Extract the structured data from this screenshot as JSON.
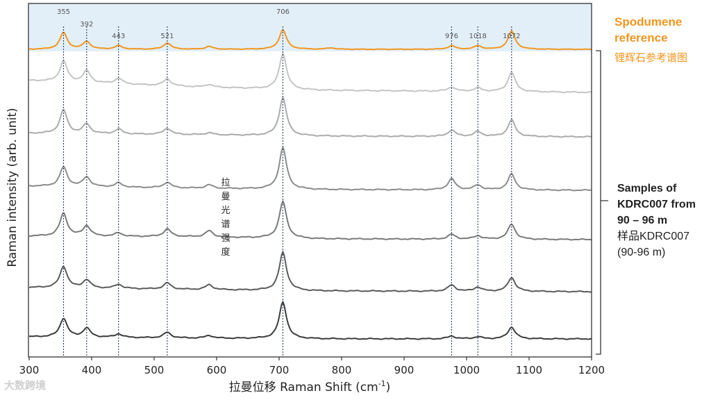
{
  "chart_data": {
    "type": "line",
    "xlabel_cn": "拉曼位移",
    "xlabel": "Raman Shift (cm",
    "xlabel_sup": "-1",
    "xlabel_close": ")",
    "ylabel": "Raman intensity (arb. unit)",
    "ylabel_cn": "拉曼光谱强度",
    "xlim": [
      300,
      1200
    ],
    "xticks": [
      300,
      400,
      500,
      600,
      700,
      800,
      900,
      1000,
      1100,
      1200
    ],
    "peak_markers": [
      355,
      392,
      443,
      521,
      706,
      976,
      1018,
      1072
    ],
    "reference": {
      "name": "Spodumene reference",
      "name_line1": "Spodumene",
      "name_line2": "reference",
      "name_cn": "锂辉石参考谱图",
      "color": "#f0961e",
      "background": "#e3eff8",
      "baseline": [
        [
          300,
          1.0
        ],
        [
          1200,
          0.9
        ]
      ],
      "peaks": [
        [
          355,
          24
        ],
        [
          392,
          11
        ],
        [
          443,
          5
        ],
        [
          521,
          9
        ],
        [
          588,
          4
        ],
        [
          706,
          28
        ],
        [
          783,
          2
        ],
        [
          976,
          5
        ],
        [
          1018,
          5
        ],
        [
          1072,
          26
        ]
      ]
    },
    "samples_label": {
      "line1": "Samples of",
      "line2": "KDRC007 from",
      "line3": "90 – 96 m",
      "line4": "样品KDRC007",
      "line5": "(90-96 m)"
    },
    "series": [
      {
        "color": "#c4c4c4",
        "baseline": [
          [
            300,
            0
          ],
          [
            560,
            -9
          ],
          [
            760,
            -14
          ],
          [
            1200,
            -17
          ]
        ],
        "peaks": [
          [
            355,
            30
          ],
          [
            392,
            17
          ],
          [
            443,
            8
          ],
          [
            521,
            10
          ],
          [
            588,
            4
          ],
          [
            706,
            52
          ],
          [
            976,
            6
          ],
          [
            1018,
            5
          ],
          [
            1072,
            28
          ]
        ]
      },
      {
        "color": "#ababab",
        "baseline": [
          [
            300,
            0
          ],
          [
            560,
            -2
          ],
          [
            760,
            -4
          ],
          [
            1200,
            -5
          ]
        ],
        "peaks": [
          [
            355,
            34
          ],
          [
            392,
            14
          ],
          [
            443,
            7
          ],
          [
            521,
            9
          ],
          [
            588,
            3
          ],
          [
            706,
            55
          ],
          [
            976,
            9
          ],
          [
            1018,
            7
          ],
          [
            1072,
            24
          ]
        ]
      },
      {
        "color": "#8c8c8c",
        "baseline": [
          [
            300,
            0
          ],
          [
            560,
            -3
          ],
          [
            760,
            -5
          ],
          [
            1200,
            -6
          ]
        ],
        "peaks": [
          [
            355,
            28
          ],
          [
            392,
            14
          ],
          [
            443,
            6
          ],
          [
            521,
            8
          ],
          [
            588,
            5
          ],
          [
            706,
            60
          ],
          [
            976,
            16
          ],
          [
            1018,
            7
          ],
          [
            1072,
            23
          ]
        ]
      },
      {
        "color": "#7a7a7a",
        "baseline": [
          [
            300,
            0
          ],
          [
            560,
            -1
          ],
          [
            760,
            -4
          ],
          [
            1200,
            -5
          ]
        ],
        "peaks": [
          [
            355,
            33
          ],
          [
            392,
            15
          ],
          [
            443,
            5
          ],
          [
            521,
            11
          ],
          [
            588,
            9
          ],
          [
            706,
            53
          ],
          [
            976,
            7
          ],
          [
            1018,
            5
          ],
          [
            1072,
            22
          ]
        ]
      },
      {
        "color": "#5a5a5a",
        "baseline": [
          [
            300,
            0
          ],
          [
            560,
            -3
          ],
          [
            760,
            -5
          ],
          [
            1200,
            -6
          ]
        ],
        "peaks": [
          [
            355,
            31
          ],
          [
            392,
            12
          ],
          [
            443,
            6
          ],
          [
            521,
            9
          ],
          [
            588,
            7
          ],
          [
            706,
            55
          ],
          [
            976,
            9
          ],
          [
            1018,
            6
          ],
          [
            1072,
            20
          ]
        ]
      },
      {
        "color": "#3c3c3c",
        "baseline": [
          [
            300,
            0
          ],
          [
            560,
            -2
          ],
          [
            760,
            -3
          ],
          [
            1200,
            -3
          ]
        ],
        "peaks": [
          [
            355,
            27
          ],
          [
            392,
            13
          ],
          [
            443,
            5
          ],
          [
            521,
            8
          ],
          [
            588,
            4
          ],
          [
            706,
            53
          ],
          [
            976,
            4
          ],
          [
            1018,
            3
          ],
          [
            1072,
            17
          ]
        ]
      }
    ]
  },
  "watermark": "大数跨境"
}
